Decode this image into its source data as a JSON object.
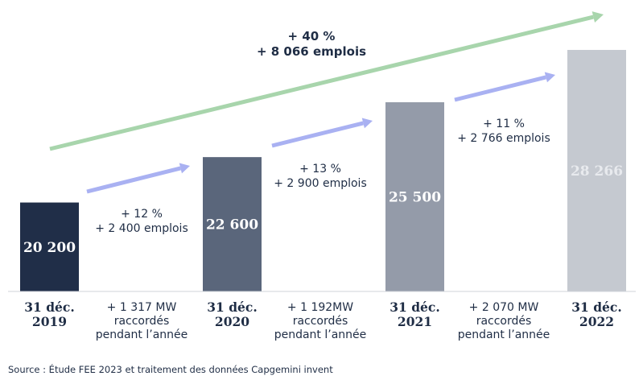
{
  "chart_data": {
    "type": "bar",
    "categories": [
      [
        "31 déc.",
        "2019"
      ],
      [
        "31 déc.",
        "2020"
      ],
      [
        "31 déc.",
        "2021"
      ],
      [
        "31 déc.",
        "2022"
      ]
    ],
    "values": [
      20200,
      22600,
      25500,
      28266
    ],
    "value_labels": [
      "20 200",
      "22 600",
      "25 500",
      "28 266"
    ],
    "bar_colors": [
      "#202e48",
      "#5a667b",
      "#949ba9",
      "#c5c9d0"
    ],
    "value_label_colors": [
      "#ffffff",
      "#ffffff",
      "#ffffff",
      "#e8eaee"
    ],
    "ylim": [
      15500,
      29500
    ],
    "growth_annotations": [
      {
        "lines": [
          "+ 12 %",
          "+ 2 400 emplois"
        ]
      },
      {
        "lines": [
          "+ 13 %",
          "+ 2 900 emplois"
        ]
      },
      {
        "lines": [
          "+ 11 %",
          "+ 2 766 emplois"
        ]
      }
    ],
    "capacity_notes": [
      {
        "lines": [
          "+  1 317 MW",
          "raccordés",
          "pendant l’année"
        ]
      },
      {
        "lines": [
          "+ 1 192MW",
          "raccordés",
          "pendant l’année"
        ]
      },
      {
        "lines": [
          "+ 2 070 MW",
          "raccordés",
          "pendant l’année"
        ]
      }
    ],
    "total_annotation": {
      "lines": [
        "+ 40 %",
        "+ 8 066 emplois"
      ]
    },
    "arrow_color": "#a9b1f2",
    "total_arrow_color": "#a8d5ac",
    "grid": false
  },
  "source": "Source : Étude FEE 2023 et traitement des données Capgemini invent"
}
